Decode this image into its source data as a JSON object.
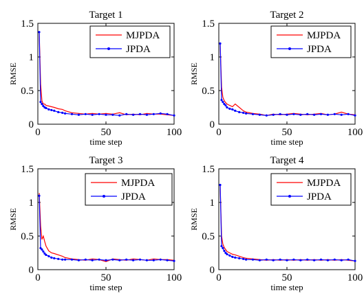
{
  "chart_data": [
    {
      "type": "line",
      "title": "Target 1",
      "xlabel": "time step",
      "ylabel": "RMSE",
      "xlim": [
        0,
        100
      ],
      "ylim": [
        0,
        1.5
      ],
      "xticks": [
        "0",
        "50",
        "100"
      ],
      "yticks": [
        "0",
        "0.5",
        "1",
        "1.5"
      ],
      "legend": "top-right",
      "series": [
        {
          "name": "MJPDA",
          "color": "#ff0000",
          "marker": "none",
          "x": [
            1,
            2,
            3,
            4,
            5,
            6,
            8,
            10,
            12,
            15,
            18,
            20,
            25,
            30,
            35,
            40,
            45,
            50,
            55,
            60,
            65,
            70,
            75,
            80,
            85,
            90,
            95,
            100
          ],
          "y": [
            1.37,
            0.6,
            0.35,
            0.3,
            0.3,
            0.28,
            0.27,
            0.26,
            0.25,
            0.23,
            0.22,
            0.2,
            0.17,
            0.16,
            0.15,
            0.16,
            0.15,
            0.16,
            0.15,
            0.17,
            0.14,
            0.15,
            0.14,
            0.16,
            0.15,
            0.15,
            0.14,
            0.13
          ]
        },
        {
          "name": "JPDA",
          "color": "#0000ff",
          "marker": "dot",
          "x": [
            1,
            2,
            3,
            4,
            5,
            6,
            8,
            10,
            12,
            15,
            18,
            20,
            25,
            30,
            35,
            40,
            45,
            50,
            55,
            60,
            65,
            70,
            75,
            80,
            85,
            90,
            95,
            100
          ],
          "y": [
            1.37,
            0.33,
            0.3,
            0.27,
            0.25,
            0.24,
            0.22,
            0.21,
            0.2,
            0.18,
            0.17,
            0.16,
            0.15,
            0.14,
            0.15,
            0.14,
            0.15,
            0.14,
            0.14,
            0.13,
            0.15,
            0.14,
            0.15,
            0.14,
            0.15,
            0.16,
            0.15,
            0.13
          ]
        }
      ]
    },
    {
      "type": "line",
      "title": "Target 2",
      "xlabel": "time step",
      "ylabel": "RMSE",
      "xlim": [
        0,
        100
      ],
      "ylim": [
        0,
        1.5
      ],
      "xticks": [
        "0",
        "50",
        "100"
      ],
      "yticks": [
        "0",
        "0.5",
        "1",
        "1.5"
      ],
      "legend": "top-right",
      "series": [
        {
          "name": "MJPDA",
          "color": "#ff0000",
          "marker": "none",
          "x": [
            1,
            2,
            3,
            4,
            5,
            6,
            8,
            10,
            12,
            15,
            18,
            20,
            25,
            30,
            35,
            40,
            45,
            50,
            55,
            60,
            65,
            70,
            75,
            80,
            85,
            90,
            95,
            100
          ],
          "y": [
            1.2,
            0.55,
            0.4,
            0.35,
            0.32,
            0.3,
            0.28,
            0.26,
            0.3,
            0.25,
            0.2,
            0.18,
            0.16,
            0.15,
            0.13,
            0.15,
            0.14,
            0.15,
            0.16,
            0.15,
            0.14,
            0.15,
            0.16,
            0.14,
            0.15,
            0.18,
            0.15,
            0.14
          ]
        },
        {
          "name": "JPDA",
          "color": "#0000ff",
          "marker": "dot",
          "x": [
            1,
            2,
            3,
            4,
            5,
            6,
            8,
            10,
            12,
            15,
            18,
            20,
            25,
            30,
            35,
            40,
            45,
            50,
            55,
            60,
            65,
            70,
            75,
            80,
            85,
            90,
            95,
            100
          ],
          "y": [
            1.2,
            0.36,
            0.33,
            0.3,
            0.28,
            0.25,
            0.23,
            0.22,
            0.2,
            0.18,
            0.17,
            0.16,
            0.15,
            0.14,
            0.13,
            0.14,
            0.15,
            0.14,
            0.15,
            0.14,
            0.15,
            0.14,
            0.15,
            0.14,
            0.15,
            0.14,
            0.15,
            0.13
          ]
        }
      ]
    },
    {
      "type": "line",
      "title": "Target 3",
      "xlabel": "time step",
      "ylabel": "RMSE",
      "xlim": [
        0,
        100
      ],
      "ylim": [
        0,
        1.5
      ],
      "xticks": [
        "0",
        "50",
        "100"
      ],
      "yticks": [
        "0",
        "0.5",
        "1",
        "1.5"
      ],
      "legend": "top-right",
      "series": [
        {
          "name": "MJPDA",
          "color": "#ff0000",
          "marker": "none",
          "x": [
            1,
            2,
            3,
            4,
            5,
            6,
            8,
            10,
            12,
            15,
            18,
            20,
            25,
            30,
            35,
            40,
            45,
            50,
            55,
            60,
            65,
            70,
            75,
            80,
            85,
            90,
            95,
            100
          ],
          "y": [
            1.14,
            0.65,
            0.45,
            0.5,
            0.42,
            0.35,
            0.28,
            0.25,
            0.24,
            0.22,
            0.2,
            0.18,
            0.16,
            0.15,
            0.14,
            0.16,
            0.15,
            0.12,
            0.16,
            0.15,
            0.14,
            0.16,
            0.15,
            0.14,
            0.16,
            0.15,
            0.15,
            0.14
          ]
        },
        {
          "name": "JPDA",
          "color": "#0000ff",
          "marker": "dot",
          "x": [
            1,
            2,
            3,
            4,
            5,
            6,
            8,
            10,
            12,
            15,
            18,
            20,
            25,
            30,
            35,
            40,
            45,
            50,
            55,
            60,
            65,
            70,
            75,
            80,
            85,
            90,
            95,
            100
          ],
          "y": [
            1.1,
            0.32,
            0.3,
            0.27,
            0.24,
            0.22,
            0.2,
            0.18,
            0.17,
            0.16,
            0.15,
            0.15,
            0.15,
            0.14,
            0.15,
            0.14,
            0.15,
            0.14,
            0.15,
            0.14,
            0.15,
            0.14,
            0.15,
            0.14,
            0.14,
            0.15,
            0.14,
            0.13
          ]
        }
      ]
    },
    {
      "type": "line",
      "title": "Target 4",
      "xlabel": "time step",
      "ylabel": "RMSE",
      "xlim": [
        0,
        100
      ],
      "ylim": [
        0,
        1.5
      ],
      "xticks": [
        "0",
        "50",
        "100"
      ],
      "yticks": [
        "0",
        "0.5",
        "1",
        "1.5"
      ],
      "legend": "top-right",
      "series": [
        {
          "name": "MJPDA",
          "color": "#ff0000",
          "marker": "none",
          "x": [
            1,
            2,
            3,
            4,
            5,
            6,
            8,
            10,
            12,
            15,
            18,
            20,
            25,
            30,
            35,
            40,
            45,
            50,
            55,
            60,
            65,
            70,
            75,
            80,
            85,
            90,
            95,
            100
          ],
          "y": [
            1.26,
            0.5,
            0.38,
            0.33,
            0.3,
            0.27,
            0.25,
            0.23,
            0.22,
            0.2,
            0.18,
            0.17,
            0.16,
            0.15,
            0.14,
            0.15,
            0.14,
            0.15,
            0.14,
            0.15,
            0.14,
            0.15,
            0.14,
            0.15,
            0.14,
            0.15,
            0.14,
            0.13
          ]
        },
        {
          "name": "JPDA",
          "color": "#0000ff",
          "marker": "dot",
          "x": [
            1,
            2,
            3,
            4,
            5,
            6,
            8,
            10,
            12,
            15,
            18,
            20,
            25,
            30,
            35,
            40,
            45,
            50,
            55,
            60,
            65,
            70,
            75,
            80,
            85,
            90,
            95,
            100
          ],
          "y": [
            1.26,
            0.35,
            0.32,
            0.28,
            0.25,
            0.23,
            0.21,
            0.19,
            0.18,
            0.17,
            0.16,
            0.15,
            0.15,
            0.14,
            0.15,
            0.14,
            0.15,
            0.14,
            0.15,
            0.14,
            0.15,
            0.14,
            0.15,
            0.14,
            0.15,
            0.14,
            0.15,
            0.13
          ]
        }
      ]
    }
  ]
}
